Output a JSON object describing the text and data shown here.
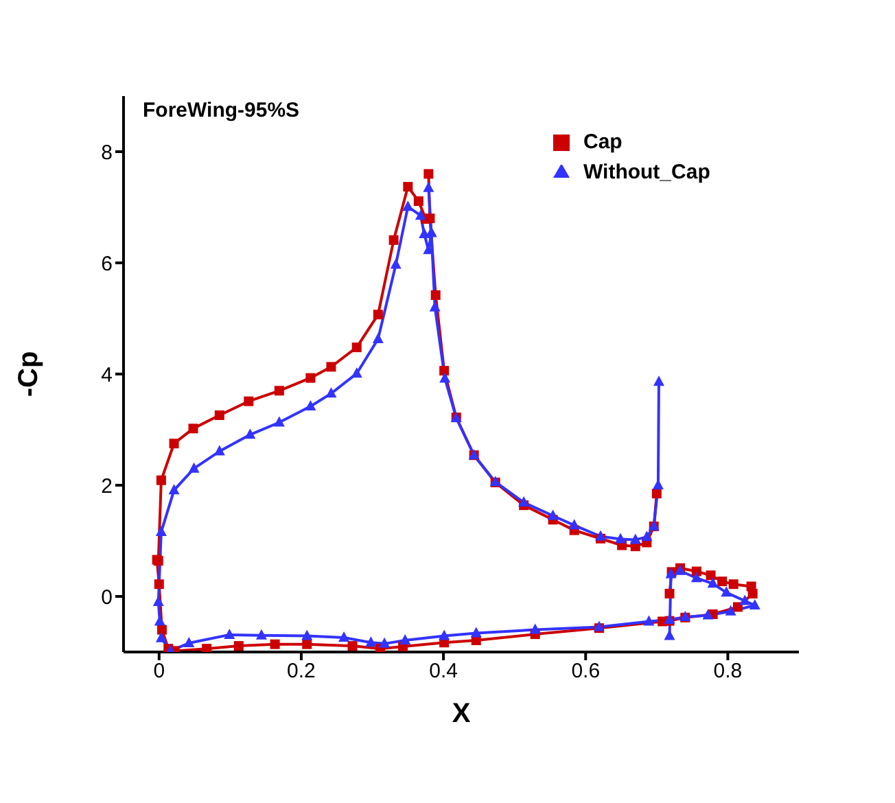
{
  "chart_data": {
    "type": "line",
    "title": "ForeWing-95%S",
    "xlabel": "X",
    "ylabel": "-Cp",
    "xlim": [
      -0.05,
      0.9
    ],
    "ylim": [
      -1,
      9
    ],
    "xticks": [
      0,
      0.2,
      0.4,
      0.6,
      0.8
    ],
    "yticks": [
      0,
      2,
      4,
      6,
      8
    ],
    "grid": false,
    "legend": "top right",
    "line_style": "solid",
    "series": [
      {
        "name": "Cap",
        "color": "#cc0000",
        "marker": "square",
        "x": [
          0.379,
          0.381,
          0.389,
          0.401,
          0.418,
          0.443,
          0.473,
          0.513,
          0.554,
          0.584,
          0.621,
          0.651,
          0.67,
          0.686,
          0.696,
          0.7,
          0.71,
          0.718,
          0.721,
          0.733,
          0.756,
          0.776,
          0.792,
          0.808,
          0.833,
          0.835,
          0.814,
          0.779,
          0.74,
          0.718,
          0.708,
          0.619,
          0.529,
          0.446,
          0.401,
          0.343,
          0.311,
          0.272,
          0.208,
          0.163,
          0.112,
          0.067,
          0.022,
          0.013,
          0.004,
          0,
          -0.003,
          -0.001,
          0.003,
          0.021,
          0.048,
          0.085,
          0.126,
          0.169,
          0.213,
          0.242,
          0.278,
          0.308,
          0.33,
          0.35,
          0.365,
          0.375
        ],
        "values": [
          7.6,
          6.8,
          5.42,
          4.06,
          3.22,
          2.54,
          2.05,
          1.64,
          1.38,
          1.19,
          1.04,
          0.92,
          0.9,
          0.97,
          1.26,
          1.85,
          null,
          0.05,
          0.44,
          0.51,
          0.45,
          0.38,
          0.27,
          0.22,
          0.18,
          0.05,
          -0.19,
          -0.32,
          -0.38,
          -0.44,
          -0.45,
          -0.57,
          -0.68,
          -0.79,
          -0.83,
          -0.9,
          -0.94,
          -0.89,
          -0.86,
          -0.86,
          -0.89,
          -0.94,
          -0.98,
          -0.94,
          -0.6,
          0.22,
          0.66,
          0.64,
          2.09,
          2.75,
          3.02,
          3.26,
          3.51,
          3.7,
          3.93,
          4.13,
          4.48,
          5.07,
          6.41,
          7.37,
          7.11,
          6.79
        ]
      },
      {
        "name": "Without_Cap",
        "color": "#3333ff",
        "marker": "triangle",
        "x": [
          0.379,
          0.383,
          0.388,
          0.402,
          0.418,
          0.443,
          0.473,
          0.513,
          0.554,
          0.584,
          0.621,
          0.649,
          0.67,
          0.686,
          0.696,
          0.702,
          0.703,
          0.71,
          0.718,
          0.72,
          0.733,
          0.756,
          0.779,
          0.798,
          0.824,
          0.838,
          0.804,
          0.772,
          0.74,
          0.718,
          0.689,
          0.619,
          0.529,
          0.446,
          0.401,
          0.346,
          0.317,
          0.298,
          0.26,
          0.208,
          0.144,
          0.099,
          0.042,
          0.016,
          0.003,
          0.001,
          -0.001,
          0.003,
          0.021,
          0.049,
          0.085,
          0.128,
          0.169,
          0.213,
          0.242,
          0.278,
          0.308,
          0.333,
          0.35,
          0.368,
          0.373,
          0.379,
          0.383
        ],
        "values": [
          7.35,
          6.54,
          5.2,
          3.92,
          3.21,
          2.54,
          2.06,
          1.69,
          1.45,
          1.28,
          1.08,
          1.03,
          1.02,
          1.07,
          1.26,
          2.0,
          3.86,
          null,
          -0.71,
          0.4,
          0.46,
          0.33,
          0.23,
          0.07,
          -0.08,
          -0.16,
          -0.27,
          -0.34,
          -0.37,
          -0.42,
          -0.45,
          -0.55,
          -0.6,
          -0.66,
          -0.71,
          -0.79,
          -0.85,
          -0.83,
          -0.74,
          -0.71,
          -0.7,
          -0.69,
          -0.84,
          -0.98,
          -0.75,
          -0.45,
          -0.1,
          1.16,
          1.91,
          2.3,
          2.61,
          2.91,
          3.13,
          3.42,
          3.65,
          4.01,
          4.63,
          5.97,
          7.01,
          6.85,
          6.52,
          6.23,
          6.54
        ]
      }
    ]
  }
}
